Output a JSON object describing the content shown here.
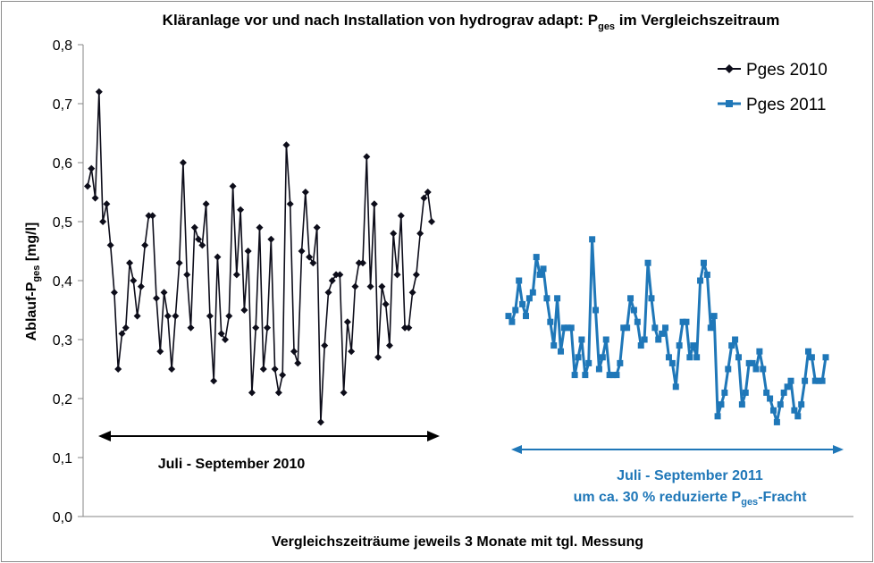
{
  "chart_data": {
    "type": "line",
    "title": {
      "pre": "Kläranlage vor und nach Installation von hydrograv adapt: P",
      "sub": "ges",
      "post": " im Vergleichszeitraum"
    },
    "ylabel": {
      "pre": "Ablauf-P",
      "sub": "ges",
      "post": " [mg/l]"
    },
    "xlabel": "Vergleichszeiträume  jeweils 3 Monate mit tgl. Messung",
    "ylim": [
      0,
      0.8
    ],
    "yticks": [
      "0,0",
      "0,1",
      "0,2",
      "0,3",
      "0,4",
      "0,5",
      "0,6",
      "0,7",
      "0,8"
    ],
    "grid": false,
    "legend_position": "top-right",
    "series": [
      {
        "name": "Pges 2010",
        "color": "#0d0d1a",
        "marker": "diamond",
        "values": [
          0.56,
          0.59,
          0.54,
          0.72,
          0.5,
          0.53,
          0.46,
          0.38,
          0.25,
          0.31,
          0.32,
          0.43,
          0.4,
          0.34,
          0.39,
          0.46,
          0.51,
          0.51,
          0.37,
          0.28,
          0.38,
          0.34,
          0.25,
          0.34,
          0.43,
          0.6,
          0.41,
          0.32,
          0.49,
          0.47,
          0.46,
          0.53,
          0.34,
          0.23,
          0.44,
          0.31,
          0.3,
          0.34,
          0.56,
          0.41,
          0.52,
          0.35,
          0.45,
          0.21,
          0.32,
          0.49,
          0.25,
          0.32,
          0.47,
          0.25,
          0.21,
          0.24,
          0.63,
          0.53,
          0.28,
          0.26,
          0.45,
          0.55,
          0.44,
          0.43,
          0.49,
          0.16,
          0.29,
          0.38,
          0.4,
          0.41,
          0.41,
          0.21,
          0.33,
          0.28,
          0.39,
          0.43,
          0.43,
          0.61,
          0.39,
          0.53,
          0.27,
          0.39,
          0.36,
          0.29,
          0.48,
          0.41,
          0.51,
          0.32,
          0.32,
          0.38,
          0.41,
          0.48,
          0.54,
          0.55,
          0.5
        ]
      },
      {
        "name": "Pges 2011",
        "color": "#1f77b8",
        "marker": "square",
        "values": [
          0.34,
          0.33,
          0.35,
          0.4,
          0.36,
          0.34,
          0.37,
          0.38,
          0.44,
          0.41,
          0.42,
          0.37,
          0.33,
          0.29,
          0.37,
          0.28,
          0.32,
          0.32,
          0.32,
          0.24,
          0.27,
          0.3,
          0.24,
          0.26,
          0.47,
          0.35,
          0.25,
          0.27,
          0.3,
          0.24,
          0.24,
          0.24,
          0.26,
          0.32,
          0.32,
          0.37,
          0.35,
          0.33,
          0.29,
          0.3,
          0.43,
          0.37,
          0.32,
          0.3,
          0.31,
          0.32,
          0.27,
          0.26,
          0.22,
          0.29,
          0.33,
          0.33,
          0.27,
          0.29,
          0.27,
          0.4,
          0.43,
          0.41,
          0.32,
          0.34,
          0.17,
          0.19,
          0.21,
          0.25,
          0.29,
          0.3,
          0.27,
          0.19,
          0.21,
          0.26,
          0.26,
          0.25,
          0.28,
          0.25,
          0.21,
          0.2,
          0.18,
          0.16,
          0.19,
          0.21,
          0.22,
          0.23,
          0.18,
          0.17,
          0.19,
          0.23,
          0.28,
          0.27,
          0.23,
          0.23,
          0.23,
          0.27
        ]
      }
    ],
    "annotations": [
      {
        "id": "period2010",
        "color": "#000000",
        "lines": [
          {
            "pre": "Juli - September 2010"
          }
        ]
      },
      {
        "id": "period2011",
        "color": "#1f77b8",
        "lines": [
          {
            "pre": "Juli - September 2011"
          },
          {
            "pre": "um ca. 30 % reduzierte P",
            "sub": "ges",
            "post": "-Fracht"
          }
        ]
      }
    ]
  }
}
